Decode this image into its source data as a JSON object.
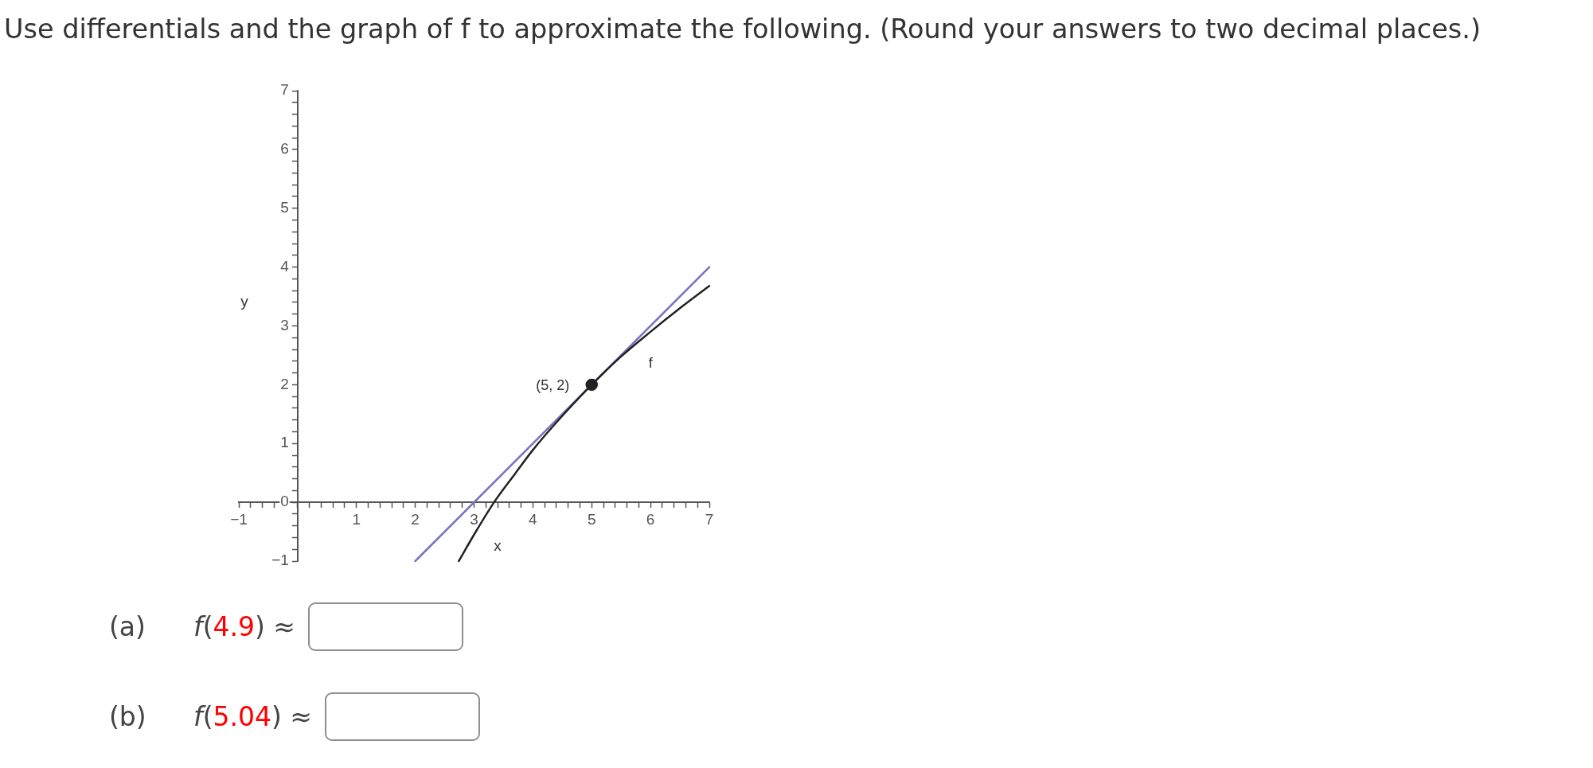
{
  "chart_data": {
    "type": "line",
    "title": "Use differentials and the graph of f to approximate the following. (Round your answers to two decimal places.)",
    "xlabel": "x",
    "ylabel": "y",
    "xlim": [
      -1,
      7
    ],
    "ylim": [
      -1,
      7
    ],
    "xticks": [
      {
        "value": -1,
        "label": "−1"
      },
      {
        "value": -0.8,
        "label": null
      },
      {
        "value": -0.6,
        "label": null
      },
      {
        "value": -0.4,
        "label": null
      },
      {
        "value": -0.2,
        "label": null
      },
      {
        "value": 0,
        "label": null
      },
      {
        "value": 0.2,
        "label": null
      },
      {
        "value": 0.4,
        "label": null
      },
      {
        "value": 0.6,
        "label": null
      },
      {
        "value": 0.8,
        "label": null
      },
      1,
      {
        "value": 1.2,
        "label": null
      },
      {
        "value": 1.4,
        "label": null
      },
      {
        "value": 1.6,
        "label": null
      },
      {
        "value": 1.8,
        "label": null
      },
      2,
      {
        "value": 2.2,
        "label": null
      },
      {
        "value": 2.4,
        "label": null
      },
      {
        "value": 2.6,
        "label": null
      },
      {
        "value": 2.8,
        "label": null
      },
      3,
      {
        "value": 3.2,
        "label": null
      },
      {
        "value": 3.4,
        "label": null
      },
      {
        "value": 3.6,
        "label": null
      },
      {
        "value": 3.8,
        "label": null
      },
      4,
      {
        "value": 4.2,
        "label": null
      },
      {
        "value": 4.4,
        "label": null
      },
      {
        "value": 4.6,
        "label": null
      },
      {
        "value": 4.8,
        "label": null
      },
      5,
      {
        "value": 5.2,
        "label": null
      },
      {
        "value": 5.4,
        "label": null
      },
      {
        "value": 5.6,
        "label": null
      },
      {
        "value": 5.8,
        "label": null
      },
      6,
      {
        "value": 6.2,
        "label": null
      },
      {
        "value": 6.4,
        "label": null
      },
      {
        "value": 6.6,
        "label": null
      },
      {
        "value": 6.8,
        "label": null
      },
      7
    ],
    "yticks": [
      {
        "value": -1,
        "label": "−1"
      },
      {
        "value": -0.8,
        "label": null
      },
      {
        "value": -0.6,
        "label": null
      },
      {
        "value": -0.4,
        "label": null
      },
      {
        "value": -0.2,
        "label": null
      },
      0,
      {
        "value": 0.2,
        "label": null
      },
      {
        "value": 0.4,
        "label": null
      },
      {
        "value": 0.6,
        "label": null
      },
      {
        "value": 0.8,
        "label": null
      },
      1,
      {
        "value": 1.2,
        "label": null
      },
      {
        "value": 1.4,
        "label": null
      },
      {
        "value": 1.6,
        "label": null
      },
      {
        "value": 1.8,
        "label": null
      },
      2,
      {
        "value": 2.2,
        "label": null
      },
      {
        "value": 2.4,
        "label": null
      },
      {
        "value": 2.6,
        "label": null
      },
      {
        "value": 2.8,
        "label": null
      },
      3,
      {
        "value": 3.2,
        "label": null
      },
      {
        "value": 3.4,
        "label": null
      },
      {
        "value": 3.6,
        "label": null
      },
      {
        "value": 3.8,
        "label": null
      },
      4,
      {
        "value": 4.2,
        "label": null
      },
      {
        "value": 4.4,
        "label": null
      },
      {
        "value": 4.6,
        "label": null
      },
      {
        "value": 4.8,
        "label": null
      },
      5,
      {
        "value": 5.2,
        "label": null
      },
      {
        "value": 5.4,
        "label": null
      },
      {
        "value": 5.6,
        "label": null
      },
      {
        "value": 5.8,
        "label": null
      },
      6,
      {
        "value": 6.2,
        "label": null
      },
      {
        "value": 6.4,
        "label": null
      },
      {
        "value": 6.6,
        "label": null
      },
      {
        "value": 6.8,
        "label": null
      },
      7
    ],
    "series": [
      {
        "name": "f",
        "color": "#222222",
        "x": [
          2.74,
          3,
          3.34,
          3.7,
          4,
          4.5,
          5,
          5.5,
          6,
          6.5,
          7
        ],
        "values": [
          -1,
          -0.55,
          0,
          0.49,
          0.89,
          1.47,
          2,
          2.48,
          2.9,
          3.3,
          3.68
        ]
      },
      {
        "color": "#7474c4",
        "x": [
          2,
          7
        ],
        "values": [
          -1,
          4
        ]
      },
      {
        "type": "scatter",
        "color": "#222222",
        "marker": "circle",
        "x": [
          5
        ],
        "values": [
          2
        ]
      }
    ],
    "annotations": [
      {
        "text": "(5, 2)",
        "x": 5,
        "y": 2
      },
      "(a) f(4.9) ≈",
      "(b) f(5.04) ≈"
    ]
  }
}
